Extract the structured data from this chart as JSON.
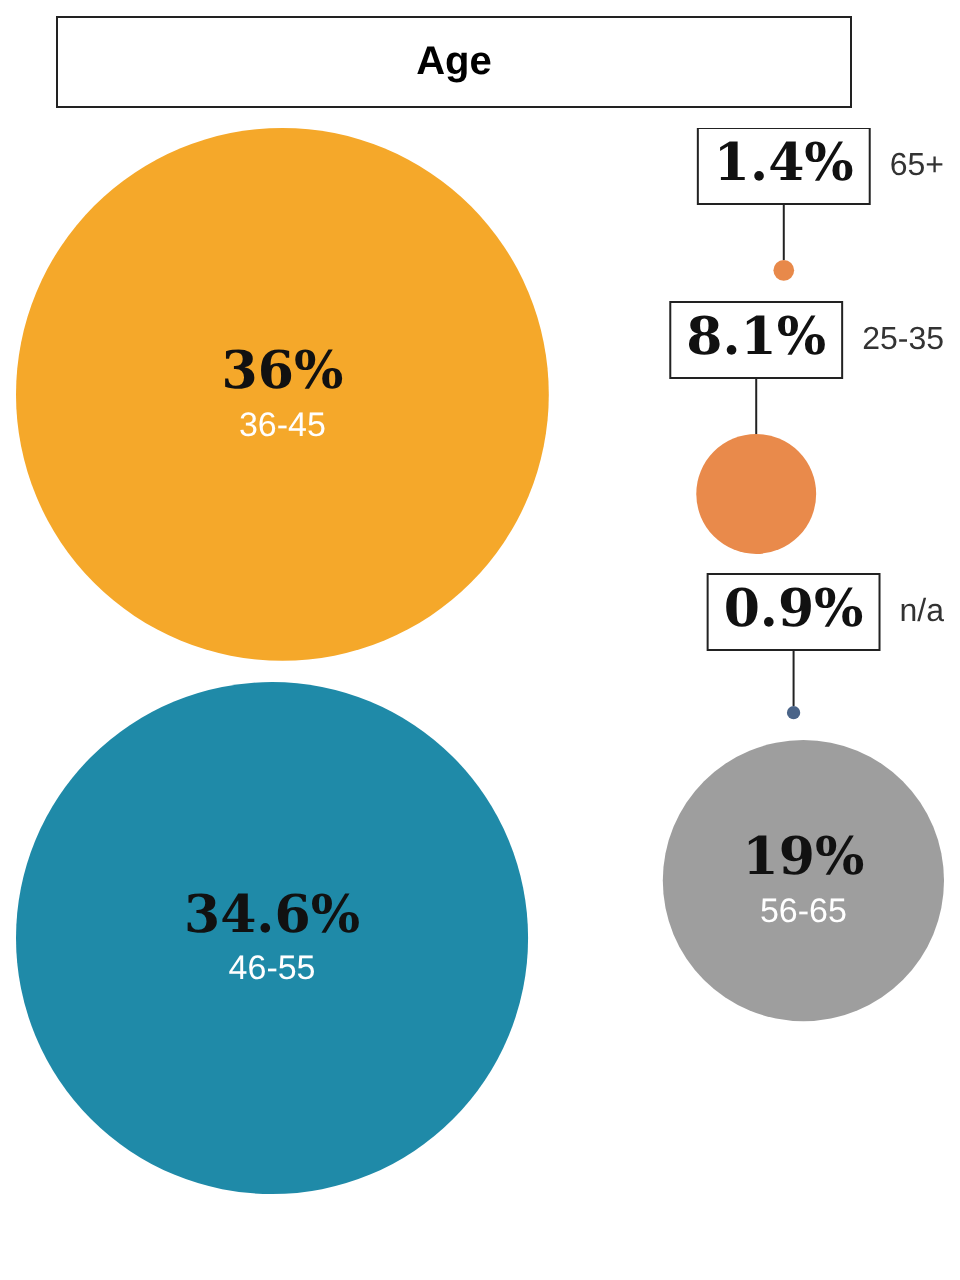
{
  "chart_data": {
    "type": "other",
    "title": "Age",
    "categories": [
      "36-45",
      "65+",
      "25-35",
      "n/a",
      "46-55",
      "56-65"
    ],
    "values": [
      36,
      1.4,
      8.1,
      0.9,
      34.6,
      19
    ],
    "value_labels": [
      "36%",
      "1.4%",
      "8.1%",
      "0.9%",
      "34.6%",
      "19%"
    ],
    "colors": [
      "#f5a82a",
      "#e8894a",
      "#e98a4b",
      "#4a6488",
      "#1f8aa8",
      "#9e9e9e"
    ]
  }
}
